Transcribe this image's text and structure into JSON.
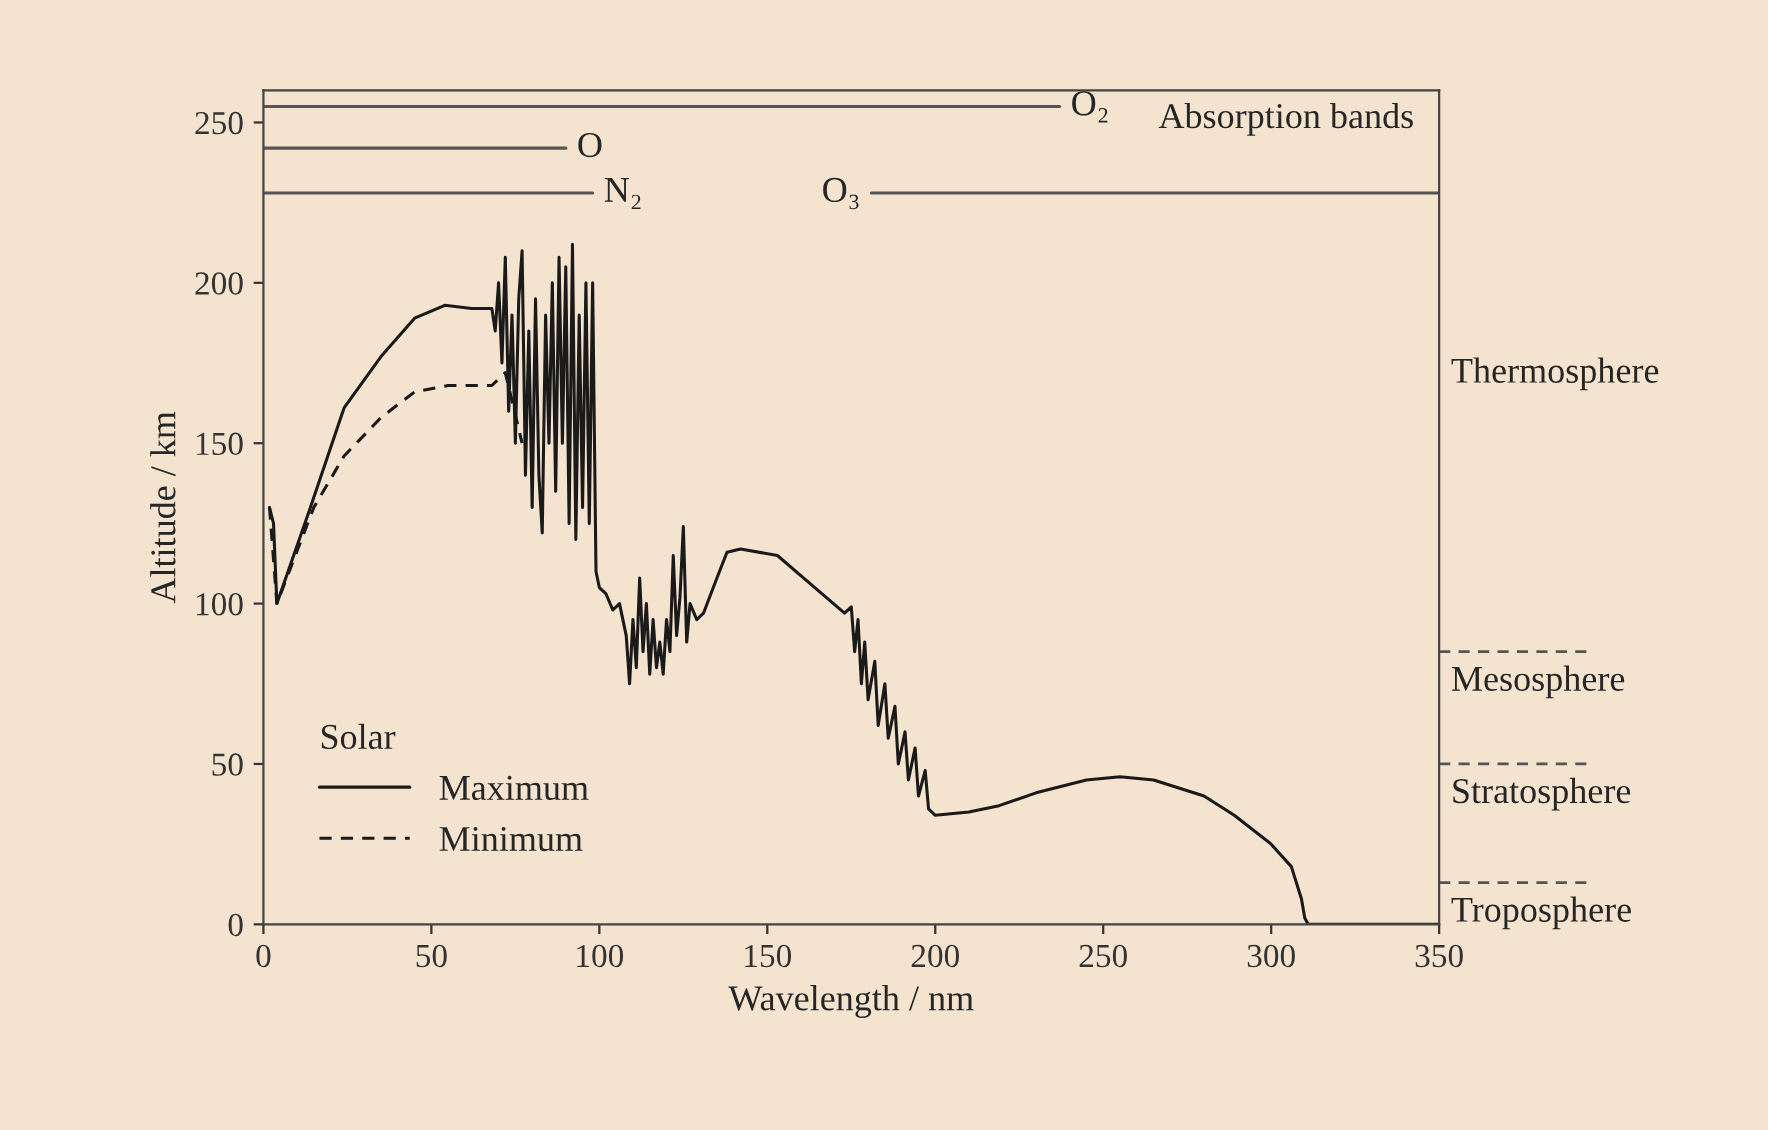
{
  "chart_data": {
    "type": "line",
    "xlabel": "Wavelength / nm",
    "ylabel": "Altitude / km",
    "legend_title": "Solar",
    "legend": "bottom left",
    "xlim": [
      0,
      350
    ],
    "xticks": [
      0,
      50,
      100,
      150,
      200,
      250,
      300,
      350
    ],
    "ylim": [
      0,
      260
    ],
    "yticks": [
      0,
      50,
      100,
      150,
      200,
      250
    ],
    "grid": false,
    "series": [
      {
        "name": "Maximum",
        "color": "#1a1a1a",
        "line_style": "solid",
        "x": [
          1.8,
          3,
          4,
          14,
          24,
          35,
          45,
          54,
          62,
          68,
          69,
          70,
          71,
          72,
          73,
          74,
          75,
          76,
          77,
          78,
          79,
          80,
          81,
          82,
          83,
          84,
          85,
          86,
          87,
          88,
          89,
          90,
          91,
          92,
          93,
          94,
          95,
          96,
          97,
          98,
          99,
          100,
          102,
          104,
          106,
          108,
          109,
          110,
          111,
          112,
          113,
          114,
          115,
          116,
          117,
          118,
          119,
          120,
          121,
          122,
          123,
          124,
          125,
          126,
          127,
          129,
          131,
          135,
          138,
          142,
          153,
          163,
          173,
          175,
          176,
          177,
          178,
          179,
          180,
          182,
          183,
          185,
          186,
          188,
          189,
          191,
          192,
          194,
          195,
          197,
          198,
          200,
          210,
          219,
          230,
          245,
          255,
          265,
          280,
          289,
          300,
          306,
          309,
          310,
          311,
          350
        ],
        "values": [
          130,
          125,
          100,
          130,
          161,
          177,
          189,
          193,
          192,
          192,
          185,
          200,
          175,
          208,
          160,
          190,
          150,
          195,
          210,
          140,
          185,
          130,
          195,
          140,
          122,
          190,
          150,
          200,
          135,
          208,
          150,
          205,
          125,
          212,
          120,
          190,
          130,
          200,
          125,
          200,
          110,
          105,
          103,
          98,
          100,
          90,
          75,
          95,
          80,
          108,
          85,
          100,
          78,
          95,
          80,
          88,
          78,
          95,
          85,
          115,
          90,
          102,
          124,
          88,
          100,
          95,
          97,
          108,
          116,
          117,
          115,
          106,
          97,
          99,
          85,
          95,
          75,
          88,
          70,
          82,
          62,
          75,
          58,
          68,
          50,
          60,
          45,
          55,
          40,
          48,
          36,
          34,
          35,
          37,
          41,
          45,
          46,
          45,
          40,
          34,
          25,
          18,
          8,
          2,
          0,
          0
        ]
      },
      {
        "name": "Minimum",
        "color": "#1a1a1a",
        "line_style": "dashed",
        "x": [
          1.8,
          4,
          15,
          24,
          35,
          45,
          55,
          68,
          72,
          74.5,
          77
        ],
        "values": [
          130,
          100,
          130,
          146,
          158,
          166,
          168,
          168,
          172,
          161,
          150
        ]
      },
      {
        "color": "#555555",
        "line_style": "solid",
        "x": [
          0,
          237
        ],
        "values": [
          255,
          255
        ]
      },
      {
        "color": "#555555",
        "line_style": "solid",
        "x": [
          0,
          90
        ],
        "values": [
          242,
          242
        ]
      },
      {
        "color": "#555555",
        "line_style": "solid",
        "x": [
          0,
          98
        ],
        "values": [
          228,
          228
        ]
      },
      {
        "color": "#555555",
        "line_style": "solid",
        "x": [
          181,
          350
        ],
        "values": [
          228,
          228
        ]
      }
    ],
    "annotations": [
      {
        "text": "O₂",
        "x": 237,
        "y": 255
      },
      {
        "text": "O",
        "x": 90,
        "y": 242
      },
      {
        "text": "N₂",
        "x": 98,
        "y": 228
      },
      {
        "text": "O₃",
        "x": 181,
        "y": 228
      },
      "Absorption bands",
      "Thermosphere"
    ],
    "ref_lines": [
      {
        "axis": "y",
        "value": 13,
        "label": "Troposphere",
        "line_style": "dashed",
        "color": "#555555"
      },
      {
        "axis": "y",
        "value": 50,
        "label": "Stratosphere",
        "line_style": "dashed",
        "color": "#555555"
      },
      {
        "axis": "y",
        "value": 85,
        "label": "Mesosphere",
        "line_style": "dashed",
        "color": "#555555"
      }
    ]
  }
}
